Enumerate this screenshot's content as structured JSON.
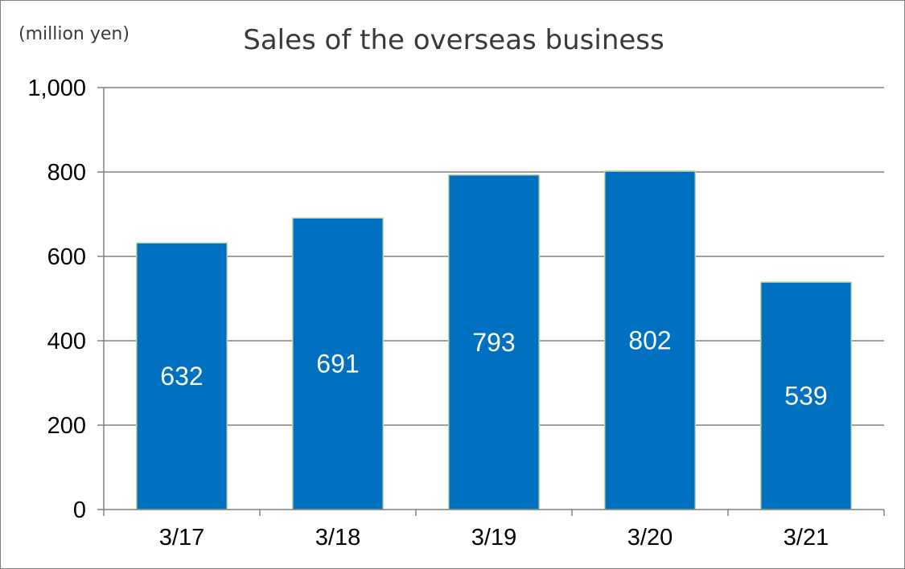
{
  "chart_data": {
    "type": "bar",
    "title": "Sales of the overseas business",
    "unit_label": "(million yen)",
    "xlabel": "",
    "ylabel": "",
    "categories": [
      "3/17",
      "3/18",
      "3/19",
      "3/20",
      "3/21"
    ],
    "values": [
      632,
      691,
      793,
      802,
      539
    ],
    "data_labels": [
      "632",
      "691",
      "793",
      "802",
      "539"
    ],
    "ylim": [
      0,
      1000
    ],
    "yticks": [
      0,
      200,
      400,
      600,
      800,
      1000
    ],
    "ytick_labels": [
      "0",
      "200",
      "400",
      "600",
      "800",
      "1,000"
    ],
    "grid": true,
    "legend": "none",
    "bar_color": "#0070c0",
    "bar_edge_color": "#c3d69b",
    "grid_color": "#808080"
  }
}
